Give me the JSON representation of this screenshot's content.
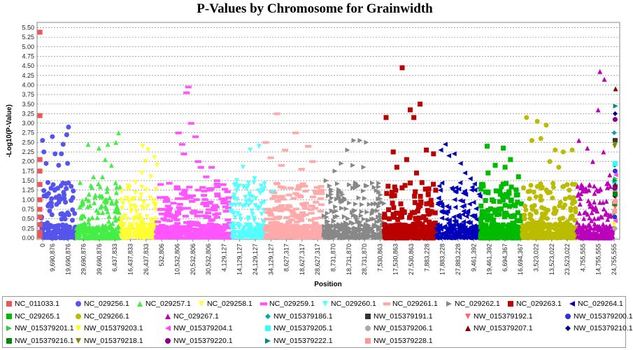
{
  "chart_data": {
    "type": "scatter",
    "title": "P-Values by Chromosome for Grainwidth",
    "xlabel": "Position",
    "ylabel": "-Log10(P-Value)",
    "ylim": [
      0,
      5.6
    ],
    "yticks": [
      "0.00",
      "0.25",
      "0.50",
      "0.75",
      "1.00",
      "1.25",
      "1.50",
      "1.75",
      "2.00",
      "2.25",
      "2.50",
      "2.75",
      "3.00",
      "3.25",
      "3.50",
      "3.75",
      "4.00",
      "4.25",
      "4.50",
      "4.75",
      "5.00",
      "5.25",
      "5.50"
    ],
    "grid": true,
    "legend_position": "bottom",
    "xtick_labels": [
      "0",
      "9,690,876",
      "19,690,876",
      "29,690,876",
      "39,690,876",
      "6,437,833",
      "16,437,833",
      "26,437,833",
      "532,806",
      "10,532,806",
      "20,532,806",
      "30,532,806",
      "4,129,127",
      "14,129,127",
      "24,129,127",
      "34,129,127",
      "8,627,317",
      "18,627,317",
      "28,627,317",
      "8,731,870",
      "18,731,870",
      "28,731,870",
      "7,530,863",
      "17,530,863",
      "27,530,863",
      "7,883,228",
      "17,883,228",
      "27,883,228",
      "9,461,392",
      "19,461,392",
      "6,694,367",
      "16,694,367",
      "3,523,022",
      "13,523,022",
      "23,523,022",
      "4,755,555",
      "14,755,555",
      "24,755,555"
    ],
    "series": [
      {
        "name": "NC_011033.1",
        "color": "#ee5555",
        "marker": "square",
        "points": [
          [
            0.2,
            5.38
          ],
          [
            0.2,
            3.2
          ],
          [
            0.3,
            2.05
          ],
          [
            0.1,
            1.75
          ],
          [
            0.2,
            1.4
          ],
          [
            0.2,
            1.0
          ],
          [
            0.1,
            0.75
          ],
          [
            0.2,
            0.55
          ],
          [
            0.3,
            0.35
          ],
          [
            0.2,
            0.15
          ],
          [
            0.1,
            0.05
          ]
        ]
      },
      {
        "name": "NC_029256.1",
        "color": "#5555ee",
        "marker": "circle",
        "points": [
          [
            6,
            2.55
          ],
          [
            9,
            2.25
          ],
          [
            28,
            2.65
          ],
          [
            34,
            2.2
          ],
          [
            48,
            2.2
          ],
          [
            52,
            2.45
          ],
          [
            60,
            2.7
          ],
          [
            64,
            2.9
          ],
          [
            62,
            1.95
          ],
          [
            70,
            1.35
          ],
          [
            14,
            1.95
          ],
          [
            42,
            1.9
          ],
          [
            18,
            1.45
          ]
        ]
      },
      {
        "name": "NC_029257.1",
        "color": "#44ee44",
        "marker": "triangle-up",
        "points": [
          [
            108,
            2.45
          ],
          [
            132,
            2.35
          ],
          [
            152,
            2.45
          ],
          [
            170,
            2.5
          ],
          [
            176,
            2.75
          ],
          [
            146,
            2.05
          ],
          [
            160,
            1.9
          ],
          [
            120,
            1.6
          ],
          [
            90,
            1.45
          ],
          [
            140,
            1.6
          ]
        ]
      },
      {
        "name": "NC_029258.1",
        "color": "#ffff33",
        "marker": "triangle-down",
        "points": [
          [
            230,
            2.4
          ],
          [
            242,
            2.3
          ],
          [
            256,
            2.1
          ],
          [
            228,
            1.7
          ],
          [
            248,
            1.6
          ],
          [
            214,
            1.45
          ],
          [
            262,
            1.9
          ],
          [
            236,
            2.0
          ]
        ]
      },
      {
        "name": "NC_029259.1",
        "color": "#ff55ff",
        "marker": "dash",
        "points": [
          [
            332,
            3.95
          ],
          [
            328,
            3.8
          ],
          [
            310,
            2.75
          ],
          [
            322,
            2.2
          ],
          [
            338,
            3.0
          ],
          [
            348,
            2.65
          ],
          [
            360,
            1.85
          ],
          [
            372,
            1.6
          ],
          [
            384,
            1.85
          ],
          [
            396,
            1.5
          ],
          [
            410,
            1.4
          ],
          [
            318,
            2.45
          ],
          [
            354,
            2.0
          ]
        ]
      },
      {
        "name": "NC_029260.1",
        "color": "#55ffff",
        "marker": "triangle-down",
        "points": [
          [
            470,
            2.3
          ],
          [
            490,
            2.4
          ],
          [
            454,
            1.85
          ],
          [
            480,
            1.55
          ],
          [
            500,
            1.25
          ],
          [
            440,
            1.5
          ],
          [
            520,
            1.2
          ]
        ]
      },
      {
        "name": "NC_029261.1",
        "color": "#ffaaaa",
        "marker": "dash",
        "points": [
          [
            505,
            2.5
          ],
          [
            530,
            3.25
          ],
          [
            572,
            2.75
          ],
          [
            600,
            2.4
          ],
          [
            548,
            2.3
          ],
          [
            516,
            2.1
          ],
          [
            610,
            2.0
          ],
          [
            540,
            1.9
          ],
          [
            585,
            1.8
          ]
        ]
      },
      {
        "name": "NC_029262.1",
        "color": "#888888",
        "marker": "triangle-right",
        "points": [
          [
            688,
            2.3
          ],
          [
            702,
            2.55
          ],
          [
            716,
            2.55
          ],
          [
            730,
            2.5
          ],
          [
            660,
            1.75
          ],
          [
            674,
            1.95
          ],
          [
            640,
            1.5
          ],
          [
            724,
            1.85
          ],
          [
            700,
            1.9
          ]
        ]
      },
      {
        "name": "NC_029263.1",
        "color": "#bb0000",
        "marker": "square",
        "points": [
          [
            810,
            4.45
          ],
          [
            828,
            3.35
          ],
          [
            836,
            3.15
          ],
          [
            850,
            3.5
          ],
          [
            774,
            3.15
          ],
          [
            790,
            2.25
          ],
          [
            864,
            2.3
          ],
          [
            880,
            2.2
          ],
          [
            798,
            1.85
          ],
          [
            820,
            2.05
          ],
          [
            842,
            1.7
          ]
        ]
      },
      {
        "name": "NC_029264.1",
        "color": "#0000bb",
        "marker": "triangle-left",
        "points": [
          [
            906,
            2.45
          ],
          [
            896,
            2.3
          ],
          [
            914,
            2.15
          ],
          [
            940,
            1.95
          ],
          [
            962,
            1.55
          ],
          [
            926,
            2.2
          ],
          [
            950,
            1.7
          ]
        ]
      },
      {
        "name": "NC_029265.1",
        "color": "#00bb00",
        "marker": "square",
        "points": [
          [
            1000,
            2.4
          ],
          [
            1036,
            2.35
          ],
          [
            1052,
            2.05
          ],
          [
            1018,
            1.9
          ],
          [
            1070,
            1.6
          ],
          [
            1002,
            1.7
          ],
          [
            1040,
            1.85
          ]
        ]
      },
      {
        "name": "NC_029266.1",
        "color": "#bbbb00",
        "marker": "circle",
        "points": [
          [
            1088,
            3.15
          ],
          [
            1112,
            3.05
          ],
          [
            1132,
            2.95
          ],
          [
            1152,
            2.3
          ],
          [
            1170,
            2.25
          ],
          [
            1190,
            2.3
          ],
          [
            1100,
            2.55
          ],
          [
            1120,
            2.6
          ],
          [
            1140,
            2.0
          ],
          [
            1160,
            1.85
          ]
        ]
      },
      {
        "name": "NC_029267.1",
        "color": "#bb00bb",
        "marker": "triangle-up",
        "points": [
          [
            1205,
            2.55
          ],
          [
            1224,
            2.35
          ],
          [
            1252,
            4.35
          ],
          [
            1262,
            4.15
          ],
          [
            1248,
            3.35
          ],
          [
            1236,
            2.0
          ],
          [
            1260,
            2.25
          ],
          [
            1274,
            1.65
          ]
        ]
      },
      {
        "name": "NW_015379186.1",
        "color": "#00aaaa",
        "marker": "diamond",
        "points": [
          [
            1284,
            2.75
          ],
          [
            1285,
            1.9
          ]
        ]
      },
      {
        "name": "NW_015379191.1",
        "color": "#333333",
        "marker": "square",
        "points": [
          [
            1286,
            2.55
          ],
          [
            1286,
            1.35
          ]
        ]
      },
      {
        "name": "NW_015379192.1",
        "color": "#ff6666",
        "marker": "triangle-down",
        "points": [
          [
            1287,
            1.05
          ],
          [
            1286,
            0.8
          ]
        ]
      },
      {
        "name": "NW_015379200.1",
        "color": "#3333cc",
        "marker": "circle",
        "points": [
          [
            1286,
            1.75
          ],
          [
            1285,
            0.55
          ]
        ]
      },
      {
        "name": "NW_015379201.1",
        "color": "#33cc33",
        "marker": "triangle-right",
        "points": [
          [
            1287,
            1.55
          ],
          [
            1285,
            0.65
          ]
        ]
      },
      {
        "name": "NW_015379203.1",
        "color": "#ffff00",
        "marker": "triangle-down",
        "points": [
          [
            1286,
            1.2
          ],
          [
            1284,
            0.35
          ]
        ]
      },
      {
        "name": "NW_015379204.1",
        "color": "#ff44ff",
        "marker": "triangle-left",
        "points": [
          [
            1287,
            1.65
          ],
          [
            1286,
            0.45
          ]
        ]
      },
      {
        "name": "NW_015379205.1",
        "color": "#33ffff",
        "marker": "square",
        "points": [
          [
            1286,
            1.95
          ],
          [
            1285,
            1.45
          ]
        ]
      },
      {
        "name": "NW_015379206.1",
        "color": "#aaaaaa",
        "marker": "circle",
        "points": [
          [
            1286,
            1.25
          ],
          [
            1285,
            0.25
          ]
        ]
      },
      {
        "name": "NW_015379207.1",
        "color": "#880000",
        "marker": "triangle-up",
        "points": [
          [
            1287,
            3.9
          ],
          [
            1286,
            1.4
          ]
        ]
      },
      {
        "name": "NW_015379210.1",
        "color": "#000088",
        "marker": "diamond",
        "points": [
          [
            1286,
            3.25
          ],
          [
            1285,
            1.1
          ]
        ]
      },
      {
        "name": "NW_015379216.1",
        "color": "#008800",
        "marker": "square",
        "points": [
          [
            1286,
            1.15
          ],
          [
            1285,
            0.9
          ]
        ]
      },
      {
        "name": "NW_015379218.1",
        "color": "#888800",
        "marker": "triangle-down",
        "points": [
          [
            1286,
            2.45
          ],
          [
            1285,
            2.4
          ]
        ]
      },
      {
        "name": "NW_015379220.1",
        "color": "#880088",
        "marker": "circle",
        "points": [
          [
            1286,
            3.1
          ],
          [
            1285,
            1.3
          ]
        ]
      },
      {
        "name": "NW_015379222.1",
        "color": "#008888",
        "marker": "triangle-right",
        "points": [
          [
            1287,
            3.45
          ],
          [
            1286,
            1.5
          ]
        ]
      },
      {
        "name": "NW_015379228.1",
        "color": "#ff9999",
        "marker": "square",
        "points": [
          [
            1286,
            0.95
          ],
          [
            1285,
            0.7
          ]
        ]
      }
    ]
  }
}
